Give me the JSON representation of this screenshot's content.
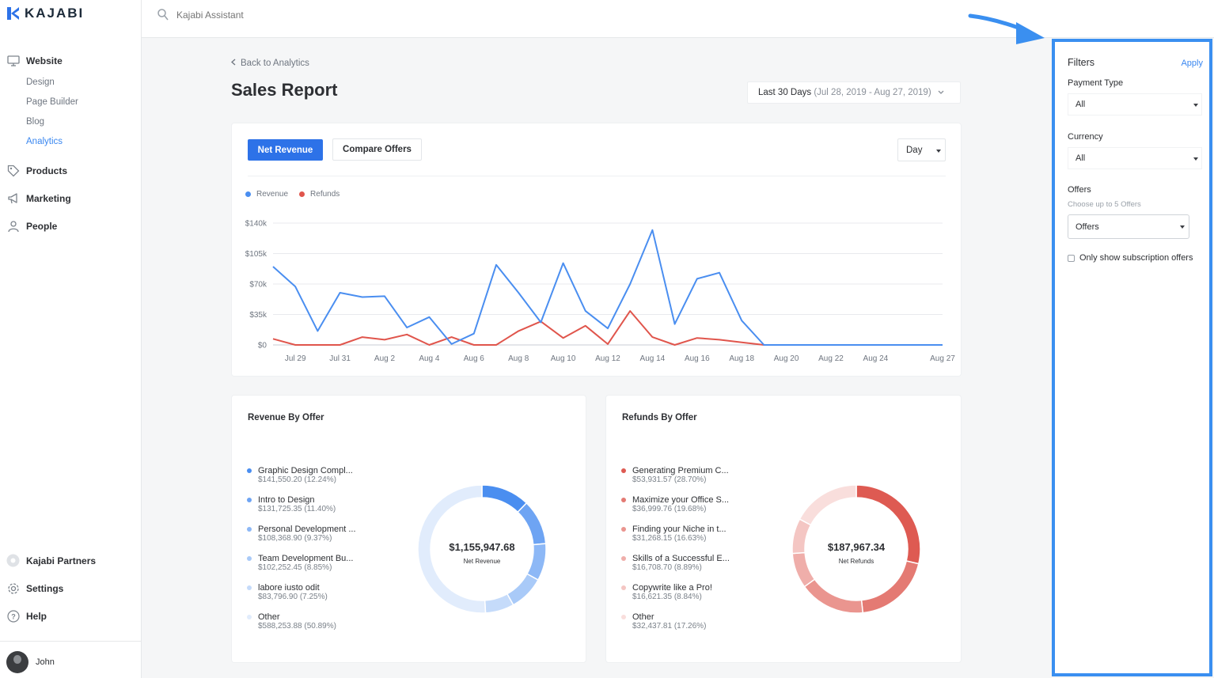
{
  "brand": {
    "name": "KAJABI",
    "color": "#2d72e8"
  },
  "search": {
    "placeholder": "Kajabi Assistant"
  },
  "sidebar": {
    "items": [
      {
        "label": "Website",
        "icon": "monitor-icon"
      },
      {
        "label": "Products",
        "icon": "tag-icon"
      },
      {
        "label": "Marketing",
        "icon": "megaphone-icon"
      },
      {
        "label": "People",
        "icon": "person-icon"
      }
    ],
    "website_sub": [
      "Design",
      "Page Builder",
      "Blog",
      "Analytics"
    ],
    "active_sub": "Analytics",
    "footer_items": [
      {
        "label": "Kajabi Partners",
        "icon": "partners-icon"
      },
      {
        "label": "Settings",
        "icon": "gear-icon"
      },
      {
        "label": "Help",
        "icon": "help-icon"
      }
    ],
    "user": "John"
  },
  "main": {
    "back_label": "Back to Analytics",
    "title": "Sales Report",
    "date_range": {
      "label": "Last 30 Days",
      "range": "(Jul 28, 2019 - Aug 27, 2019)"
    }
  },
  "chart_card": {
    "tabs": {
      "primary": "Net Revenue",
      "secondary": "Compare Offers"
    },
    "period": "Day",
    "legend": [
      {
        "name": "Revenue",
        "color": "#4a8ef0"
      },
      {
        "name": "Refunds",
        "color": "#e0554c"
      }
    ]
  },
  "chart_data": {
    "type": "line",
    "x": [
      "Jul 28",
      "Jul 29",
      "Jul 30",
      "Jul 31",
      "Aug 1",
      "Aug 2",
      "Aug 3",
      "Aug 4",
      "Aug 5",
      "Aug 6",
      "Aug 7",
      "Aug 8",
      "Aug 9",
      "Aug 10",
      "Aug 11",
      "Aug 12",
      "Aug 13",
      "Aug 14",
      "Aug 15",
      "Aug 16",
      "Aug 17",
      "Aug 18",
      "Aug 19",
      "Aug 20",
      "Aug 21",
      "Aug 22",
      "Aug 23",
      "Aug 24",
      "Aug 25",
      "Aug 26",
      "Aug 27"
    ],
    "xticks": [
      "Jul 29",
      "Jul 31",
      "Aug 2",
      "Aug 4",
      "Aug 6",
      "Aug 8",
      "Aug 10",
      "Aug 12",
      "Aug 14",
      "Aug 16",
      "Aug 18",
      "Aug 20",
      "Aug 22",
      "Aug 24",
      "Aug 27"
    ],
    "series": [
      {
        "name": "Revenue",
        "values": [
          90000,
          67000,
          16000,
          60000,
          55000,
          56000,
          20000,
          32000,
          1000,
          13000,
          92000,
          60000,
          26000,
          94000,
          39000,
          19000,
          70000,
          132000,
          24000,
          76000,
          83000,
          28000,
          0,
          0,
          0,
          0,
          0,
          0,
          0,
          0,
          0
        ]
      },
      {
        "name": "Refunds",
        "values": [
          7000,
          0,
          0,
          0,
          9000,
          6000,
          12000,
          0,
          9000,
          0,
          0,
          16000,
          27000,
          8000,
          22000,
          1000,
          39000,
          9000,
          0,
          8000,
          6000,
          3000,
          0,
          0,
          0,
          0,
          0,
          0,
          0,
          0,
          0
        ]
      }
    ],
    "yticks": [
      "$0",
      "$35k",
      "$70k",
      "$105k",
      "$140k"
    ],
    "ylim": [
      0,
      140000
    ],
    "grid": true,
    "legend": "top-left"
  },
  "revenue_by_offer": {
    "title": "Revenue By Offer",
    "total": "$1,155,947.68",
    "total_label": "Net Revenue",
    "items": [
      {
        "name": "Graphic Design Compl...",
        "value": "$141,550.20 (12.24%)",
        "pct": 12.24,
        "color": "#4a8ef0"
      },
      {
        "name": "Intro to Design",
        "value": "$131,725.35 (11.40%)",
        "pct": 11.4,
        "color": "#6ea4f3"
      },
      {
        "name": "Personal Development ...",
        "value": "$108,368.90 (9.37%)",
        "pct": 9.37,
        "color": "#8db8f6"
      },
      {
        "name": "Team Development Bu...",
        "value": "$102,252.45 (8.85%)",
        "pct": 8.85,
        "color": "#a9caf8"
      },
      {
        "name": "labore iusto odit",
        "value": "$83,796.90 (7.25%)",
        "pct": 7.25,
        "color": "#c5dbfa"
      },
      {
        "name": "Other",
        "value": "$588,253.88 (50.89%)",
        "pct": 50.89,
        "color": "#e1ecfc"
      }
    ]
  },
  "refunds_by_offer": {
    "title": "Refunds By Offer",
    "total": "$187,967.34",
    "total_label": "Net Refunds",
    "items": [
      {
        "name": "Generating Premium C...",
        "value": "$53,931.57 (28.70%)",
        "pct": 28.7,
        "color": "#de5a52"
      },
      {
        "name": "Maximize your Office S...",
        "value": "$36,999.76 (19.68%)",
        "pct": 19.68,
        "color": "#e47a73"
      },
      {
        "name": "Finding your Niche in t...",
        "value": "$31,268.15 (16.63%)",
        "pct": 16.63,
        "color": "#ea958f"
      },
      {
        "name": "Skills of a Successful E...",
        "value": "$16,708.70 (8.89%)",
        "pct": 8.89,
        "color": "#efaeaa"
      },
      {
        "name": "Copywrite like a Pro!",
        "value": "$16,621.35 (8.84%)",
        "pct": 8.84,
        "color": "#f4c6c3"
      },
      {
        "name": "Other",
        "value": "$32,437.81 (17.26%)",
        "pct": 17.26,
        "color": "#f9dedc"
      }
    ]
  },
  "filters": {
    "title": "Filters",
    "apply_label": "Apply",
    "payment_type": {
      "label": "Payment Type",
      "value": "All"
    },
    "currency": {
      "label": "Currency",
      "value": "All"
    },
    "offers": {
      "label": "Offers",
      "hint": "Choose up to 5 Offers",
      "value": "Offers"
    },
    "subscription_only": {
      "label": "Only show subscription offers",
      "checked": false
    },
    "highlight_color": "#3a8ff0"
  }
}
